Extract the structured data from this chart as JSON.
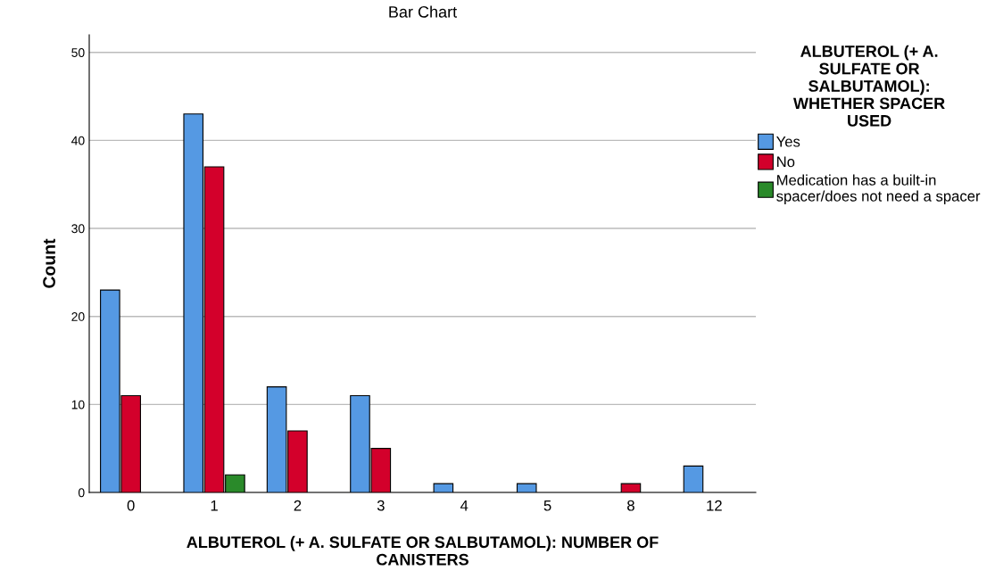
{
  "chart_data": {
    "type": "bar",
    "title": "Bar Chart",
    "xlabel": "ALBUTEROL (+ A. SULFATE OR SALBUTAMOL): NUMBER OF\nCANISTERS",
    "ylabel": "Count",
    "legend_title": "ALBUTEROL (+ A.\nSULFATE OR\nSALBUTAMOL):\nWHETHER SPACER\nUSED",
    "categories": [
      "0",
      "1",
      "2",
      "3",
      "4",
      "5",
      "8",
      "12"
    ],
    "series": [
      {
        "name": "Yes",
        "color": "#5599e3",
        "values": [
          23,
          43,
          12,
          11,
          1,
          1,
          null,
          3
        ]
      },
      {
        "name": "No",
        "color": "#d3002b",
        "values": [
          11,
          37,
          7,
          5,
          null,
          null,
          1,
          null
        ]
      },
      {
        "name": "Medication has a built-in\nspacer/does not need a spacer",
        "color": "#2a8a2a",
        "values": [
          null,
          2,
          null,
          null,
          null,
          null,
          null,
          null
        ]
      }
    ],
    "ylim": [
      0,
      52
    ],
    "yticks": [
      0,
      10,
      20,
      30,
      40,
      50
    ],
    "grid": "y",
    "legend": "right"
  }
}
